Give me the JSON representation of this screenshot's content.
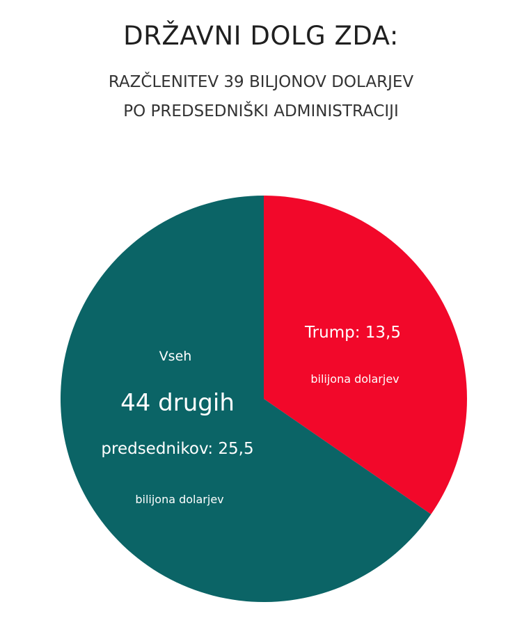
{
  "title": "DRŽAVNI DOLG ZDA:",
  "subtitle_line1": "RAZČLENITEV 39 BILJONOV DOLARJEV",
  "subtitle_line2": "PO PREDSEDNIŠKI ADMINISTRACIJI",
  "chart_data": {
    "type": "pie",
    "slices": [
      {
        "name": "Trump",
        "value": 13.5,
        "color": "#f2082a"
      },
      {
        "name": "Vseh 44 drugih predsednikov",
        "value": 25.5,
        "color": "#0b6466"
      }
    ],
    "labels": {
      "trump_line1": "Trump: 13,5",
      "trump_line2": "bilijona dolarjev",
      "others_line1": "Vseh",
      "others_line2": "44 drugih",
      "others_line3": "predsednikov: 25,5",
      "others_line4": "bilijona dolarjev"
    }
  }
}
